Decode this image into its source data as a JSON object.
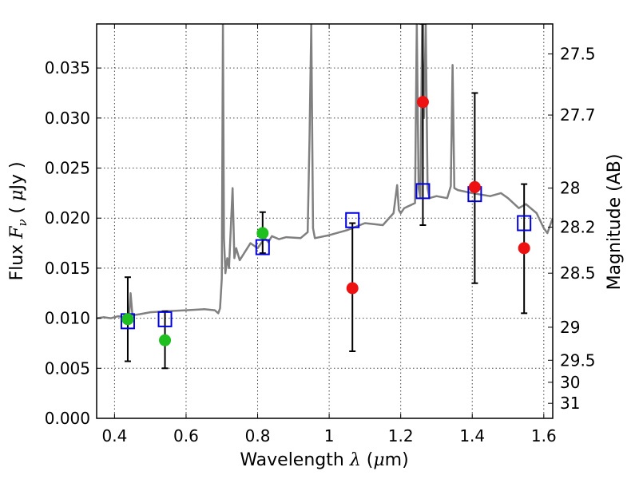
{
  "chart_data": {
    "type": "scatter",
    "title": "",
    "xlabel": "Wavelength  λ (μm)",
    "ylabel": "Flux  F_ν  ( μJy )",
    "ylabel_parts": [
      "Flux  ",
      "F",
      "ν",
      "  ( ",
      "μ",
      "Jy )"
    ],
    "y2label": "Magnitude (AB)",
    "xlim": [
      0.35,
      1.625
    ],
    "ylim": [
      0.0,
      0.0394
    ],
    "grid": true,
    "x_ticks": [
      0.4,
      0.6,
      0.8,
      1.0,
      1.2,
      1.4,
      1.6
    ],
    "x_tick_labels": [
      "0.4",
      "0.6",
      "0.8",
      "1",
      "1.2",
      "1.4",
      "1.6"
    ],
    "y_ticks": [
      0.0,
      0.005,
      0.01,
      0.015,
      0.02,
      0.025,
      0.03,
      0.035
    ],
    "y_tick_labels": [
      "0.000",
      "0.005",
      "0.010",
      "0.015",
      "0.020",
      "0.025",
      "0.030",
      "0.035"
    ],
    "mag_ticks": [
      {
        "label": "27.5",
        "flux": 0.0364
      },
      {
        "label": "27.7",
        "flux": 0.0303
      },
      {
        "label": "28",
        "flux": 0.023
      },
      {
        "label": "28.2",
        "flux": 0.0191
      },
      {
        "label": "28.5",
        "flux": 0.0145
      },
      {
        "label": "29",
        "flux": 0.0091
      },
      {
        "label": "29.5",
        "flux": 0.0058
      },
      {
        "label": "30",
        "flux": 0.0036
      },
      {
        "label": "31",
        "flux": 0.0015
      }
    ],
    "colors": {
      "spectrum": "#808080",
      "detection": "#1fbf1f",
      "low_significance": "#ee1111",
      "model": "#0000dd",
      "errorbar": "#000000",
      "grid": "#444444"
    },
    "series": [
      {
        "type": "line",
        "x": [
          0.35,
          0.37,
          0.39,
          0.41,
          0.43,
          0.44,
          0.445,
          0.45,
          0.47,
          0.5,
          0.55,
          0.6,
          0.65,
          0.68,
          0.69,
          0.695,
          0.7,
          0.703,
          0.706,
          0.71,
          0.715,
          0.72,
          0.73,
          0.735,
          0.74,
          0.75,
          0.78,
          0.8,
          0.81,
          0.82,
          0.83,
          0.84,
          0.86,
          0.88,
          0.92,
          0.94,
          0.945,
          0.95,
          0.955,
          0.96,
          1.0,
          1.05,
          1.1,
          1.15,
          1.18,
          1.19,
          1.195,
          1.2,
          1.21,
          1.24,
          1.245,
          1.25,
          1.255,
          1.26,
          1.265,
          1.27,
          1.275,
          1.28,
          1.3,
          1.33,
          1.34,
          1.345,
          1.35,
          1.36,
          1.4,
          1.45,
          1.48,
          1.5,
          1.53,
          1.55,
          1.58,
          1.6,
          1.61,
          1.625
        ],
        "y": [
          0.01,
          0.0101,
          0.01,
          0.0102,
          0.0101,
          0.0098,
          0.0125,
          0.0103,
          0.0104,
          0.0106,
          0.0107,
          0.0108,
          0.0109,
          0.0108,
          0.0105,
          0.011,
          0.014,
          0.0394,
          0.018,
          0.0145,
          0.016,
          0.015,
          0.023,
          0.016,
          0.017,
          0.0158,
          0.0175,
          0.017,
          0.0175,
          0.018,
          0.0176,
          0.0182,
          0.0179,
          0.0181,
          0.018,
          0.0186,
          0.028,
          0.0394,
          0.019,
          0.018,
          0.0183,
          0.0188,
          0.0195,
          0.0193,
          0.0205,
          0.0233,
          0.0208,
          0.0205,
          0.021,
          0.0215,
          0.0394,
          0.023,
          0.022,
          0.0394,
          0.03,
          0.0394,
          0.023,
          0.022,
          0.0222,
          0.022,
          0.0232,
          0.0353,
          0.023,
          0.0228,
          0.0225,
          0.0222,
          0.0225,
          0.022,
          0.021,
          0.0214,
          0.0205,
          0.019,
          0.0185,
          0.02
        ]
      },
      {
        "type": "scatter",
        "marker": "circle",
        "color": "green",
        "x": [
          0.437,
          0.541,
          0.814
        ],
        "y": [
          0.0099,
          0.0078,
          0.0185
        ],
        "yerr_low": [
          0.0057,
          0.005,
          0.0165
        ],
        "yerr_high": [
          0.0141,
          0.0107,
          0.0206
        ]
      },
      {
        "type": "scatter",
        "marker": "circle",
        "color": "red",
        "x": [
          1.065,
          1.262,
          1.407,
          1.545
        ],
        "y": [
          0.013,
          0.0316,
          0.0231,
          0.017
        ],
        "yerr_low": [
          0.0067,
          0.0193,
          0.0135,
          0.0105
        ],
        "yerr_high": [
          0.0195,
          0.0394,
          0.0325,
          0.0234
        ]
      },
      {
        "type": "scatter",
        "marker": "square-open",
        "color": "blue",
        "x": [
          0.437,
          0.541,
          0.814,
          1.065,
          1.262,
          1.407,
          1.545
        ],
        "y": [
          0.0097,
          0.0099,
          0.0171,
          0.0198,
          0.0227,
          0.0224,
          0.0195
        ]
      }
    ]
  }
}
